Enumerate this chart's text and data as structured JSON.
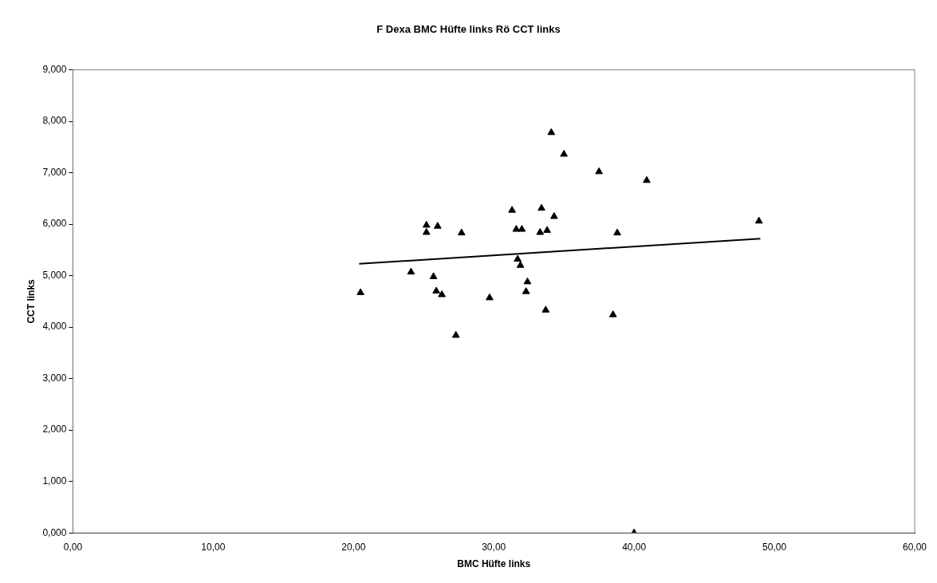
{
  "chart_data": {
    "type": "scatter",
    "title": "F Dexa BMC Hüfte links Rö CCT links",
    "xlabel": "BMC Hüfte links",
    "ylabel": "CCT links",
    "marker": "triangle",
    "grid": false,
    "legend": false,
    "xlim": [
      0,
      60
    ],
    "xticks": [
      {
        "value": 0,
        "label": "0,00"
      },
      {
        "value": 10,
        "label": "10,00"
      },
      {
        "value": 20,
        "label": "20,00"
      },
      {
        "value": 30,
        "label": "30,00"
      },
      {
        "value": 40,
        "label": "40,00"
      },
      {
        "value": 50,
        "label": "50,00"
      },
      {
        "value": 60,
        "label": "60,00"
      }
    ],
    "ylim": [
      0,
      9
    ],
    "yticks": [
      {
        "value": 0,
        "label": "0,000"
      },
      {
        "value": 1,
        "label": "1,000"
      },
      {
        "value": 2,
        "label": "2,000"
      },
      {
        "value": 3,
        "label": "3,000"
      },
      {
        "value": 4,
        "label": "4,000"
      },
      {
        "value": 5,
        "label": "5,000"
      },
      {
        "value": 6,
        "label": "6,000"
      },
      {
        "value": 7,
        "label": "7,000"
      },
      {
        "value": 8,
        "label": "8,000"
      },
      {
        "value": 9,
        "label": "9,000"
      }
    ],
    "series": [
      {
        "type": "scatter",
        "color": "#000000",
        "x": [
          20.5,
          24.1,
          25.2,
          25.2,
          26.0,
          25.7,
          25.9,
          26.3,
          27.3,
          27.7,
          29.7,
          31.3,
          31.7,
          31.9,
          31.6,
          32.0,
          32.4,
          32.3,
          33.4,
          33.3,
          33.8,
          33.7,
          34.3,
          34.1,
          35.0,
          37.5,
          40.9,
          38.5,
          38.8,
          48.9,
          40.0
        ],
        "values": [
          4.67,
          5.07,
          5.98,
          5.84,
          5.96,
          4.98,
          4.7,
          4.63,
          3.84,
          5.83,
          4.57,
          6.27,
          5.32,
          5.2,
          5.9,
          5.9,
          4.88,
          4.69,
          6.31,
          5.84,
          5.88,
          4.33,
          6.15,
          7.78,
          7.36,
          7.02,
          6.85,
          4.24,
          5.83,
          6.06,
          0
        ]
      },
      {
        "type": "line",
        "color": "#000000",
        "marker": "none",
        "x": [
          20.4,
          49.0
        ],
        "values": [
          5.23,
          5.72
        ]
      }
    ]
  }
}
